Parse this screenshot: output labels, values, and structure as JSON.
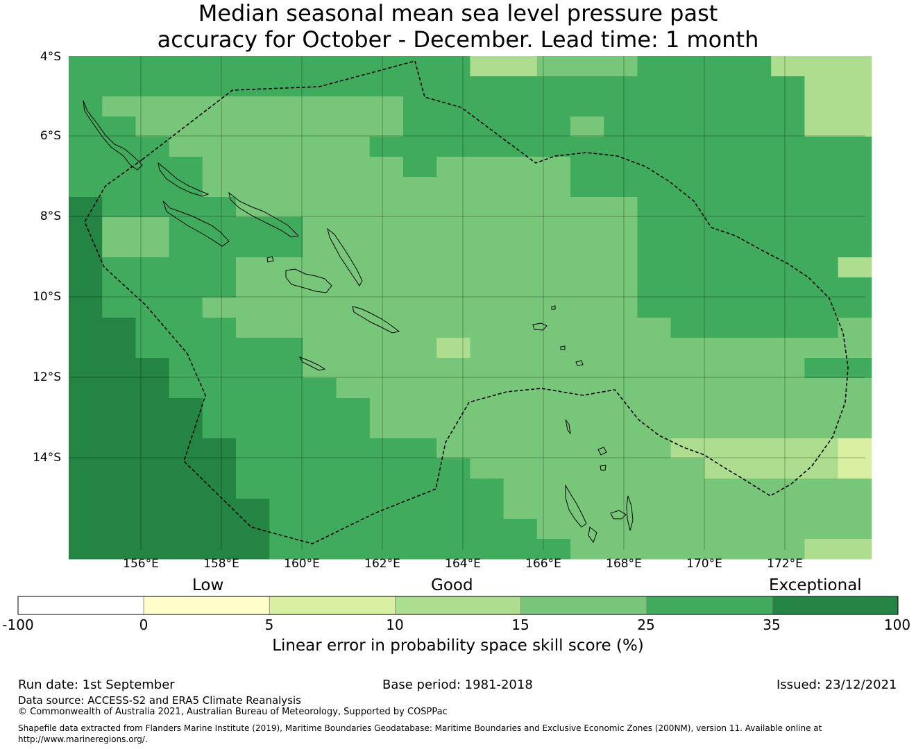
{
  "title": {
    "line1": "Median seasonal mean sea level pressure past",
    "line2": "accuracy for October - December. Lead time: 1 month"
  },
  "map": {
    "lat_labels": [
      "4°S",
      "6°S",
      "8°S",
      "10°S",
      "12°S",
      "14°S"
    ],
    "lon_labels": [
      "156°E",
      "158°E",
      "160°E",
      "162°E",
      "164°E",
      "166°E",
      "168°E",
      "170°E",
      "172°E"
    ],
    "legend_colors": {
      "c0": "#ffffcc",
      "c1": "#d9f0a3",
      "c2": "#addd8e",
      "c3": "#78c679",
      "c4": "#41ab5d",
      "c5": "#238443"
    },
    "grid": {
      "rows": [
        "4444444444442233344442222",
        "4444444444444444444444222",
        "4333333333444444444444224",
        "4433333333444443444444223",
        "4443333334444444444444444",
        "4444333333433334444444444",
        "4444333333333334444444444",
        "5444433333333333344444444",
        "5334444333333333344444444",
        "5334444333333333344444444",
        "5444433333333333344444424",
        "5444433333333333344444444",
        "5444333333333333344444444",
        "5544433333333333334444434",
        "5544444333323333333333333",
        "5554444333333333333333443",
        "5554444433333333333333333",
        "5555444443333333333333332",
        "5555444443333333333333332",
        "5555544444433333332222212",
        "5555544444443333333222211",
        "5555544444444333333333333",
        "5555554444444333333333332",
        "5555554444444433333333332",
        "5555554444444443333333222",
        "5555554444444444333333332"
      ]
    }
  },
  "legend": {
    "category_labels": [
      "Low",
      "Good",
      "Exceptional"
    ],
    "ticks": [
      "-100",
      "0",
      "5",
      "10",
      "15",
      "25",
      "35",
      "100"
    ],
    "colors": [
      "#ffffff",
      "#ffffcc",
      "#d9f0a3",
      "#addd8e",
      "#78c679",
      "#41ab5d",
      "#238443"
    ],
    "label": "Linear error in probability space skill score (%)"
  },
  "footer": {
    "run_date": "Run date: 1st September",
    "base_period": "Base period: 1981-2018",
    "issued": "Issued: 23/12/2021",
    "data_source": "Data source: ACCESS-S2 and ERA5 Climate Reanalysis",
    "copyright": "© Commonwealth of Australia 2021, Australian Bureau of Meteorology, Supported by COSPPac",
    "shapefile_line1": "Shapefile data extracted from Flanders Marine Institute (2019), Maritime Boundaries Geodatabase: Maritime Boundaries and Exclusive Economic Zones (200NM), version 11. Available online at",
    "shapefile_line2": "http://www.marineregions.org/."
  }
}
